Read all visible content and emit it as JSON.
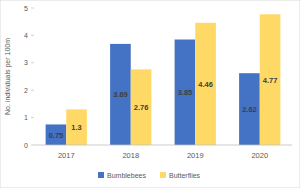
{
  "chart_data": {
    "type": "bar",
    "categories": [
      "2017",
      "2018",
      "2019",
      "2020"
    ],
    "series": [
      {
        "name": "Bumblebees",
        "color": "#4472c4",
        "values": [
          0.75,
          3.69,
          3.85,
          2.62
        ]
      },
      {
        "name": "Butterflies",
        "color": "#ffd966",
        "values": [
          1.3,
          2.76,
          4.46,
          4.77
        ]
      }
    ],
    "y_label": "No. individuals per 100m",
    "ylim": [
      0,
      5
    ],
    "yticks": [
      0,
      1,
      2,
      3,
      4,
      5
    ],
    "grid": false,
    "legend": "bottom",
    "data_labels": true
  }
}
